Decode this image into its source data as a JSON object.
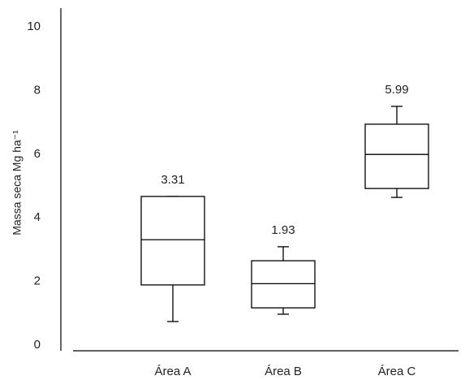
{
  "chart_data": {
    "type": "box",
    "y_label": "Massa seca Mg ha⁻¹",
    "categories": [
      "Área A",
      "Área B",
      "Área C"
    ],
    "min": [
      0.74,
      0.97,
      4.64
    ],
    "q1": [
      1.89,
      1.17,
      4.92
    ],
    "medians": [
      3.31,
      1.93,
      5.99
    ],
    "q3": [
      4.67,
      2.65,
      6.94
    ],
    "max": [
      4.67,
      3.09,
      7.5
    ],
    "color": "#000000",
    "ylim": [
      0,
      10
    ],
    "yticks": [
      0,
      2,
      4,
      6,
      8,
      10
    ],
    "grid": false
  }
}
